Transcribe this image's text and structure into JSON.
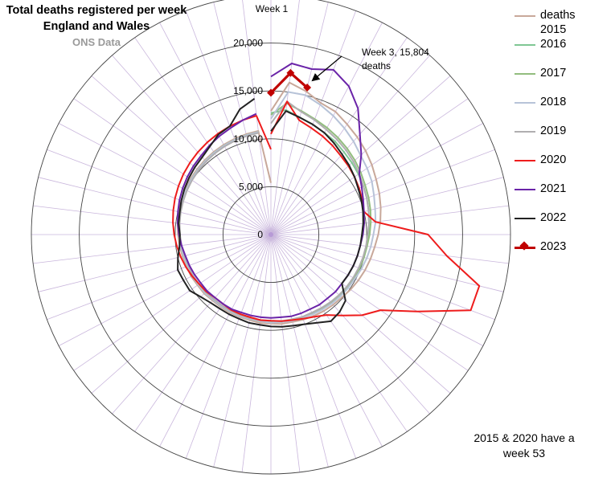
{
  "title": {
    "line1": "Total deaths registered per week",
    "line2": "England and Wales",
    "line3": "ONS Data"
  },
  "note": {
    "line1": "2015 & 2020 have a",
    "line2": "week 53"
  },
  "colors": {
    "2015": "#c8a89a",
    "2016": "#7fc794",
    "2017": "#92bd7e",
    "2018": "#b7c3d8",
    "2019": "#b0aeb0",
    "2020": "#ee1c1c",
    "2021": "#6a23a8",
    "2022": "#222222",
    "2023": "#c00000"
  },
  "chart_data": {
    "type": "radar",
    "x_label_start": "Week 1",
    "direction": "clockwise",
    "r_ticks": [
      0,
      5000,
      10000,
      15000,
      20000
    ],
    "r_tick_labels": [
      "0",
      "5,000",
      "10,000",
      "15,000",
      "20,000"
    ],
    "rlim": [
      0,
      25000
    ],
    "grid": true,
    "legend_position": "right",
    "annotation": {
      "text_line1": "Week 3, 15,804",
      "text_line2": "deaths",
      "week": 3,
      "value": 15804
    },
    "series": [
      {
        "name": "deaths 2015",
        "label_line1": "deaths",
        "label_line2": "2015",
        "values": [
          12900,
          16000,
          15400,
          14700,
          14500,
          14000,
          13600,
          13200,
          12800,
          12400,
          12100,
          11800,
          11500,
          11200,
          10900,
          10700,
          10500,
          10300,
          10100,
          9900,
          9800,
          9700,
          9600,
          9500,
          9400,
          9400,
          9300,
          9300,
          9200,
          9200,
          9200,
          9200,
          9200,
          9300,
          9300,
          9400,
          9400,
          9500,
          9600,
          9700,
          9800,
          9900,
          10000,
          10100,
          10200,
          10300,
          10400,
          10500,
          10600,
          10700,
          10800,
          10900,
          5400
        ]
      },
      {
        "name": "2016",
        "values": [
          12700,
          13100,
          12600,
          12300,
          12000,
          11800,
          11500,
          11300,
          11100,
          10900,
          10700,
          10500,
          10300,
          10200,
          10100,
          10000,
          9900,
          9800,
          9700,
          9600,
          9500,
          9400,
          9300,
          9300,
          9200,
          9200,
          9100,
          9100,
          9100,
          9100,
          9100,
          9100,
          9100,
          9200,
          9200,
          9300,
          9300,
          9400,
          9500,
          9600,
          9700,
          9800,
          9900,
          10000,
          10100,
          10200,
          10300,
          10400,
          10500,
          10600,
          10700,
          10800
        ]
      },
      {
        "name": "2017",
        "values": [
          12500,
          13800,
          13300,
          12900,
          12600,
          12300,
          12000,
          11700,
          11400,
          11100,
          10900,
          10700,
          10500,
          10300,
          10100,
          10000,
          9900,
          9800,
          9700,
          9600,
          9500,
          9400,
          9300,
          9300,
          9200,
          9200,
          9100,
          9100,
          9100,
          9100,
          9100,
          9100,
          9100,
          9200,
          9200,
          9300,
          9300,
          9400,
          9500,
          9600,
          9700,
          9800,
          9900,
          10000,
          10100,
          10200,
          10300,
          10400,
          10500,
          10600,
          10700,
          10800
        ]
      },
      {
        "name": "2018",
        "values": [
          12100,
          15000,
          15000,
          14500,
          14000,
          13500,
          13000,
          12500,
          12200,
          11900,
          11500,
          11200,
          11000,
          10700,
          10500,
          10300,
          10100,
          9900,
          9800,
          9700,
          9600,
          9500,
          9400,
          9300,
          9300,
          9200,
          9200,
          9100,
          9100,
          9100,
          9100,
          9100,
          9100,
          9200,
          9200,
          9300,
          9300,
          9400,
          9500,
          9600,
          9700,
          9800,
          9900,
          10000,
          10100,
          10200,
          10300,
          10400,
          10500,
          10600,
          10700,
          10800
        ]
      },
      {
        "name": "2019",
        "values": [
          11600,
          14000,
          13200,
          12800,
          12400,
          12100,
          11800,
          11500,
          11200,
          10900,
          10700,
          10500,
          10300,
          10100,
          10000,
          9900,
          9800,
          9700,
          9600,
          9500,
          9400,
          9300,
          9200,
          9200,
          9100,
          9100,
          9000,
          9000,
          9000,
          9000,
          9000,
          9000,
          9000,
          9100,
          9100,
          9200,
          9200,
          9300,
          9400,
          9500,
          9600,
          9700,
          9800,
          9900,
          10000,
          10100,
          10200,
          10300,
          10400,
          10500,
          10600,
          10700
        ]
      },
      {
        "name": "2020",
        "values": [
          10500,
          14000,
          12300,
          11900,
          11600,
          11300,
          11000,
          10800,
          10600,
          10400,
          10200,
          10000,
          11000,
          16400,
          18500,
          22400,
          22300,
          17300,
          13900,
          12700,
          11300,
          10200,
          9700,
          9400,
          9200,
          9100,
          9000,
          9000,
          8900,
          8900,
          8900,
          8800,
          8800,
          9000,
          9100,
          9300,
          9500,
          9700,
          9900,
          10100,
          10300,
          10500,
          10700,
          10900,
          11100,
          11300,
          11500,
          11700,
          11900,
          12100,
          12300,
          12500,
          8900
        ]
      },
      {
        "name": "2021",
        "values": [
          16500,
          18000,
          17800,
          18400,
          17500,
          16000,
          14000,
          12600,
          11200,
          10700,
          10300,
          10000,
          9800,
          9600,
          9400,
          9300,
          9200,
          9100,
          9000,
          9000,
          8900,
          8900,
          8800,
          8800,
          8800,
          8700,
          8700,
          8700,
          8700,
          8700,
          8800,
          8800,
          8800,
          8900,
          8900,
          9000,
          9100,
          9200,
          9400,
          9600,
          9800,
          10000,
          10200,
          10400,
          10600,
          10800,
          11000,
          11300,
          11600,
          11900,
          12300,
          12700
        ]
      },
      {
        "name": "2022",
        "values": [
          10800,
          13000,
          12600,
          12300,
          12000,
          11600,
          11200,
          10900,
          10600,
          10300,
          10100,
          9900,
          9700,
          9500,
          9400,
          9300,
          9200,
          9100,
          9000,
          10400,
          10800,
          11000,
          10400,
          10000,
          9800,
          9700,
          9600,
          9500,
          9500,
          9400,
          9400,
          9400,
          9500,
          9800,
          10300,
          10300,
          10400,
          10000,
          9600,
          9500,
          9700,
          9800,
          10000,
          10200,
          10400,
          10600,
          10800,
          11200,
          11800,
          12100,
          13500,
          14300
        ]
      },
      {
        "name": "2023",
        "values": [
          14800,
          17000,
          15804
        ]
      }
    ]
  }
}
